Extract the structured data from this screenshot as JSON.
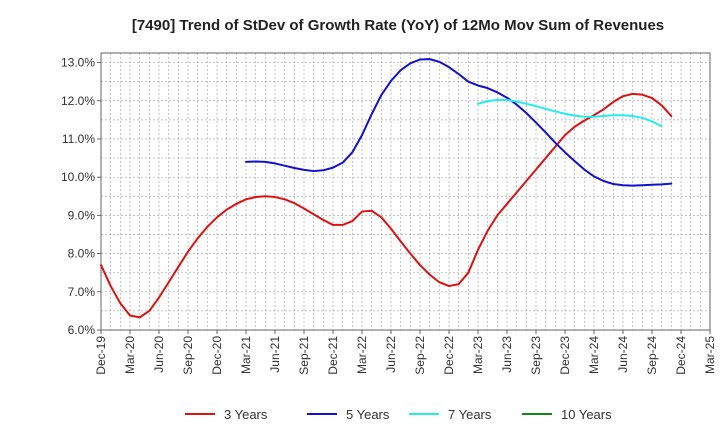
{
  "chart_data": {
    "type": "line",
    "title": "[7490]  Trend of StDev of Growth Rate (YoY) of 12Mo Mov Sum of Revenues",
    "xlabel": "",
    "ylabel": "",
    "ylim": [
      6.0,
      13.25
    ],
    "y_ticks": [
      6.0,
      7.0,
      8.0,
      9.0,
      10.0,
      11.0,
      12.0,
      13.0
    ],
    "y_tick_labels": [
      "6.0%",
      "7.0%",
      "8.0%",
      "9.0%",
      "10.0%",
      "11.0%",
      "12.0%",
      "13.0%"
    ],
    "x_tick_labels": [
      "Dec-19",
      "Mar-20",
      "Jun-20",
      "Sep-20",
      "Dec-20",
      "Mar-21",
      "Jun-21",
      "Sep-21",
      "Dec-21",
      "Mar-22",
      "Jun-22",
      "Sep-22",
      "Dec-22",
      "Mar-23",
      "Jun-23",
      "Sep-23",
      "Dec-23",
      "Mar-24",
      "Jun-24",
      "Sep-24",
      "Dec-24",
      "Mar-25"
    ],
    "x_count_months": 63,
    "grid": true,
    "legend_position": "bottom",
    "series": [
      {
        "name": "3 Years",
        "color": "#dd1111",
        "start_index": 0,
        "values": [
          7.7,
          7.15,
          6.7,
          6.38,
          6.33,
          6.5,
          6.85,
          7.25,
          7.65,
          8.05,
          8.4,
          8.7,
          8.95,
          9.15,
          9.3,
          9.42,
          9.48,
          9.5,
          9.48,
          9.42,
          9.32,
          9.18,
          9.03,
          8.88,
          8.75,
          8.75,
          8.85,
          9.1,
          9.12,
          8.95,
          8.65,
          8.32,
          8.0,
          7.7,
          7.45,
          7.25,
          7.15,
          7.2,
          7.5,
          8.1,
          8.6,
          9.0,
          9.3,
          9.6,
          9.9,
          10.2,
          10.5,
          10.8,
          11.1,
          11.32,
          11.48,
          11.62,
          11.78,
          11.97,
          12.12,
          12.18,
          12.16,
          12.07,
          11.88,
          11.6
        ]
      },
      {
        "name": "5 Years",
        "color": "#1111cc",
        "start_index": 15,
        "values": [
          10.4,
          10.41,
          10.4,
          10.36,
          10.3,
          10.24,
          10.19,
          10.16,
          10.18,
          10.25,
          10.38,
          10.65,
          11.1,
          11.65,
          12.15,
          12.52,
          12.8,
          12.98,
          13.08,
          13.09,
          13.02,
          12.88,
          12.7,
          12.5,
          12.4,
          12.33,
          12.22,
          12.08,
          11.9,
          11.68,
          11.43,
          11.17,
          10.9,
          10.65,
          10.42,
          10.2,
          10.02,
          9.9,
          9.82,
          9.79,
          9.78,
          9.79,
          9.8,
          9.81,
          9.83
        ]
      },
      {
        "name": "7 Years",
        "color": "#22eeee",
        "start_index": 39,
        "values": [
          11.92,
          11.99,
          12.02,
          12.02,
          11.98,
          11.92,
          11.86,
          11.79,
          11.72,
          11.66,
          11.61,
          11.58,
          11.58,
          11.6,
          11.62,
          11.62,
          11.6,
          11.55,
          11.46,
          11.33
        ]
      },
      {
        "name": "10 Years",
        "color": "#118811",
        "start_index": 0,
        "values": []
      }
    ]
  }
}
